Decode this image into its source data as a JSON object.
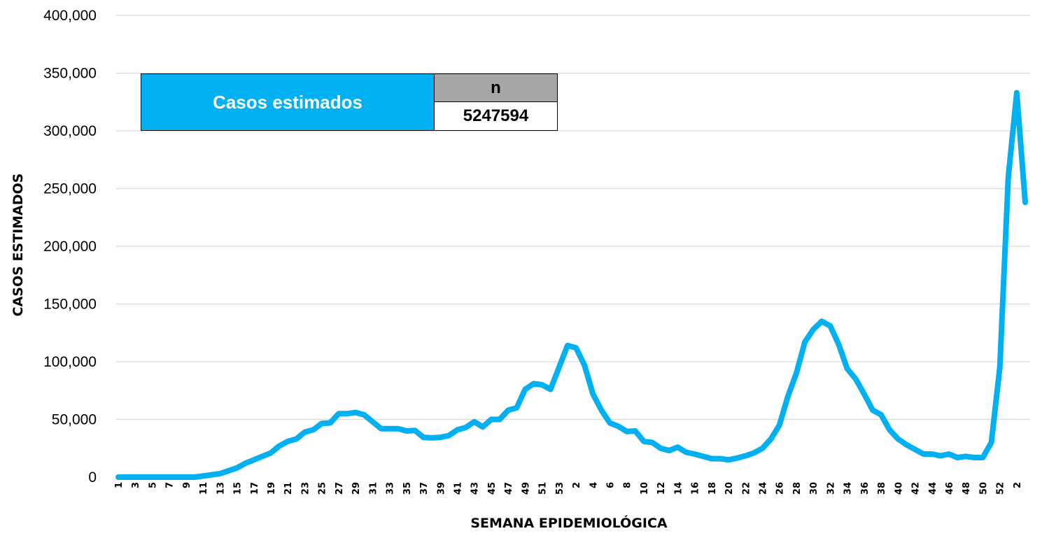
{
  "chart_data": {
    "type": "line",
    "title": "",
    "xlabel": "SEMANA EPIDEMIOLÓGICA",
    "ylabel": "CASOS ESTIMADOS",
    "ylim": [
      0,
      400000
    ],
    "y_ticks": [
      "0",
      "50,000",
      "100,000",
      "150,000",
      "200,000",
      "250,000",
      "300,000",
      "350,000",
      "400,000"
    ],
    "x_ticks": [
      "1",
      "3",
      "5",
      "7",
      "9",
      "11",
      "13",
      "15",
      "17",
      "19",
      "21",
      "23",
      "25",
      "27",
      "29",
      "31",
      "33",
      "35",
      "37",
      "39",
      "41",
      "43",
      "45",
      "47",
      "49",
      "51",
      "53",
      "2",
      "4",
      "6",
      "8",
      "10",
      "12",
      "14",
      "16",
      "18",
      "20",
      "22",
      "24",
      "26",
      "28",
      "30",
      "32",
      "34",
      "36",
      "38",
      "40",
      "42",
      "44",
      "46",
      "48",
      "50",
      "52",
      "2"
    ],
    "grid": "horizontal",
    "line_color": "#00b0f0",
    "series": [
      {
        "values": [
          0,
          0,
          0,
          0,
          0,
          0,
          0,
          0,
          0,
          0,
          1000,
          2000,
          3000,
          5500,
          8000,
          12000,
          15000,
          18000,
          21000,
          27000,
          31000,
          33000,
          39000,
          41000,
          46500,
          47000,
          55000,
          55000,
          56000,
          54000,
          48000,
          42000,
          42000,
          42000,
          40000,
          40500,
          34500,
          34000,
          34500,
          36000,
          41000,
          43000,
          48000,
          43500,
          50000,
          50000,
          58000,
          60000,
          76000,
          81000,
          80000,
          76000,
          95000,
          114000,
          112000,
          97000,
          72000,
          58000,
          47000,
          44000,
          39500,
          40000,
          31000,
          30000,
          25000,
          23000,
          26000,
          21500,
          20000,
          18000,
          16000,
          16000,
          15000,
          16500,
          18500,
          21000,
          25000,
          33000,
          45000,
          70000,
          90000,
          117000,
          128000,
          135000,
          131000,
          115000,
          94000,
          85000,
          72000,
          58000,
          54000,
          41000,
          33000,
          28000,
          24000,
          20000,
          20000,
          18500,
          20000,
          17000,
          18000,
          17000,
          17000,
          30000,
          95000,
          260000,
          333000,
          238000
        ]
      }
    ]
  },
  "summary_table": {
    "label": "Casos estimados",
    "header": "n",
    "value": "5247594"
  }
}
